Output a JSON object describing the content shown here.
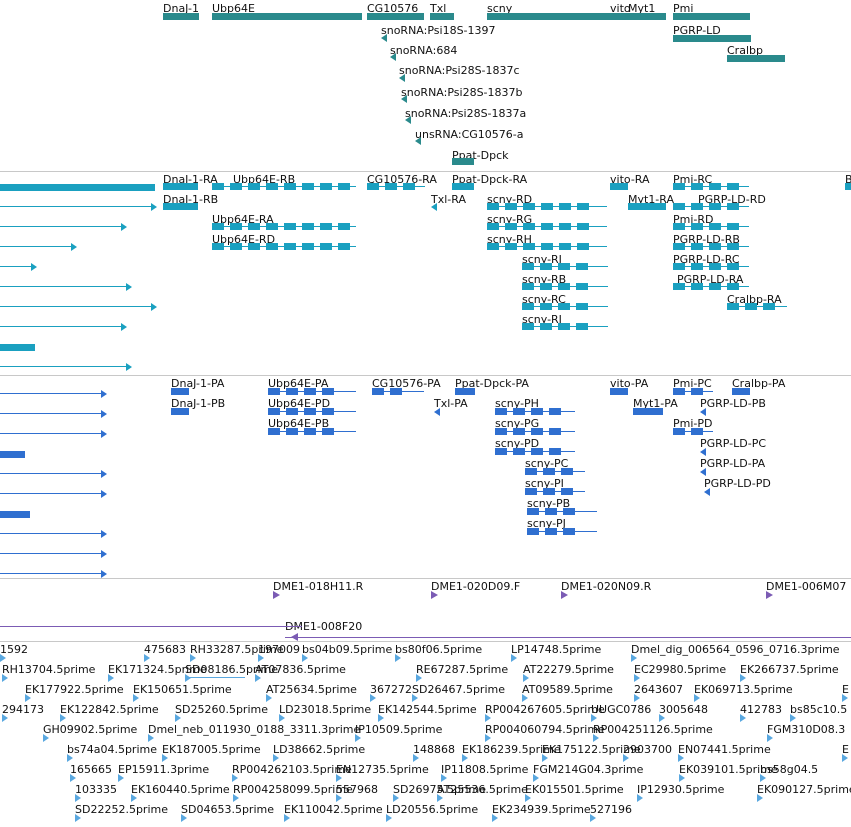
{
  "colors": {
    "gene": "#2a8a8c",
    "transcript": "#1aa0c0",
    "protein": "#2f6fd0",
    "clone": "#7b5bb4",
    "est": "#5aa8e0",
    "separator": "#c8c8c8"
  },
  "tracks": [
    {
      "name": "gene-track",
      "color_key": "gene",
      "features": [
        {
          "label": "DnaJ-1"
        },
        {
          "label": "Ubp64E"
        },
        {
          "label": "CG10576"
        },
        {
          "label": "Txl"
        },
        {
          "label": "scny"
        },
        {
          "label": "vito"
        },
        {
          "label": "Myt1"
        },
        {
          "label": "Pmi"
        },
        {
          "label": "PGRP-LD"
        },
        {
          "label": "Cralbp"
        },
        {
          "label": "snoRNA:Psi18S-1397"
        },
        {
          "label": "snoRNA:684"
        },
        {
          "label": "snoRNA:Psi28S-1837c"
        },
        {
          "label": "snoRNA:Psi28S-1837b"
        },
        {
          "label": "snoRNA:Psi28S-1837a"
        },
        {
          "label": "unsRNA:CG10576-a"
        },
        {
          "label": "Ppat-Dpck"
        }
      ]
    },
    {
      "name": "transcript-track",
      "color_key": "transcript",
      "features": [
        {
          "label": "DnaJ-1-RA"
        },
        {
          "label": "DnaJ-1-RB"
        },
        {
          "label": "Ubp64E-RB"
        },
        {
          "label": "Ubp64E-RA"
        },
        {
          "label": "Ubp64E-RD"
        },
        {
          "label": "CG10576-RA"
        },
        {
          "label": "Ppat-Dpck-RA"
        },
        {
          "label": "Txl-RA"
        },
        {
          "label": "scny-RD"
        },
        {
          "label": "scny-RG"
        },
        {
          "label": "scny-RH"
        },
        {
          "label": "scny-RJ"
        },
        {
          "label": "scny-RB"
        },
        {
          "label": "scny-RC"
        },
        {
          "label": "scny-RI"
        },
        {
          "label": "vito-RA"
        },
        {
          "label": "Myt1-RA"
        },
        {
          "label": "Pmi-RC"
        },
        {
          "label": "PGRP-LD-RD"
        },
        {
          "label": "Pmi-RD"
        },
        {
          "label": "PGRP-LD-RB"
        },
        {
          "label": "PGRP-LD-RC"
        },
        {
          "label": "PGRP-LD-RA"
        },
        {
          "label": "Cralbp-RA"
        },
        {
          "label": "B"
        }
      ]
    },
    {
      "name": "protein-track",
      "color_key": "protein",
      "features": [
        {
          "label": "DnaJ-1-PA"
        },
        {
          "label": "DnaJ-1-PB"
        },
        {
          "label": "Ubp64E-PA"
        },
        {
          "label": "Ubp64E-PD"
        },
        {
          "label": "Ubp64E-PB"
        },
        {
          "label": "CG10576-PA"
        },
        {
          "label": "Ppat-Dpck-PA"
        },
        {
          "label": "Txl-PA"
        },
        {
          "label": "scny-PH"
        },
        {
          "label": "scny-PG"
        },
        {
          "label": "scny-PD"
        },
        {
          "label": "scny-PC"
        },
        {
          "label": "scny-PI"
        },
        {
          "label": "scny-PB"
        },
        {
          "label": "scny-PJ"
        },
        {
          "label": "vito-PA"
        },
        {
          "label": "Myt1-PA"
        },
        {
          "label": "Pmi-PC"
        },
        {
          "label": "Pmi-PD"
        },
        {
          "label": "Cralbp-PA"
        },
        {
          "label": "PGRP-LD-PB"
        },
        {
          "label": "PGRP-LD-PC"
        },
        {
          "label": "PGRP-LD-PA"
        },
        {
          "label": "PGRP-LD-PD"
        }
      ]
    },
    {
      "name": "clone-track",
      "color_key": "clone",
      "features": [
        {
          "label": "DME1-018H11.R"
        },
        {
          "label": "DME1-020D09.F"
        },
        {
          "label": "DME1-020N09.R"
        },
        {
          "label": "DME1-006M07"
        },
        {
          "label": "DME1-008F20"
        }
      ]
    },
    {
      "name": "est-track",
      "color_key": "est",
      "features": [
        {
          "label": "1592"
        },
        {
          "label": "475683"
        },
        {
          "label": "RH33287.5prime"
        },
        {
          "label": "197009"
        },
        {
          "label": "bs04b09.5prime"
        },
        {
          "label": "bs80f06.5prime"
        },
        {
          "label": "LP14748.5prime"
        },
        {
          "label": "Dmel_dig_006564_0596_0716.3prime"
        },
        {
          "label": "RH13704.5prime"
        },
        {
          "label": "EK171324.5prime"
        },
        {
          "label": "SD08186.5prime"
        },
        {
          "label": "AT07836.5prime"
        },
        {
          "label": "RE67287.5prime"
        },
        {
          "label": "AT22279.5prime"
        },
        {
          "label": "EC29980.5prime"
        },
        {
          "label": "EK266737.5prime"
        },
        {
          "label": "EK177922.5prime"
        },
        {
          "label": "EK150651.5prime"
        },
        {
          "label": "AT25634.5prime"
        },
        {
          "label": "367272"
        },
        {
          "label": "SD26467.5prime"
        },
        {
          "label": "AT09589.5prime"
        },
        {
          "label": "2643607"
        },
        {
          "label": "EK069713.5prime"
        },
        {
          "label": "E"
        },
        {
          "label": "294173"
        },
        {
          "label": "EK122842.5prime"
        },
        {
          "label": "SD25260.5prime"
        },
        {
          "label": "LD23018.5prime"
        },
        {
          "label": "EK142544.5prime"
        },
        {
          "label": "RP004267605.5prime"
        },
        {
          "label": "UUGC0786"
        },
        {
          "label": "3005648"
        },
        {
          "label": "412783"
        },
        {
          "label": "bs85c10.5"
        },
        {
          "label": "GH09902.5prime"
        },
        {
          "label": "Dmel_neb_011930_0188_3311.3prime"
        },
        {
          "label": "IP10509.5prime"
        },
        {
          "label": "RP004060794.5prime"
        },
        {
          "label": "RP004251126.5prime"
        },
        {
          "label": "FGM310D08.3"
        },
        {
          "label": "bs74a04.5prime"
        },
        {
          "label": "EK187005.5prime"
        },
        {
          "label": "LD38662.5prime"
        },
        {
          "label": "148868"
        },
        {
          "label": "EK186239.5prime"
        },
        {
          "label": "EK175122.5prime"
        },
        {
          "label": "2903700"
        },
        {
          "label": "EN07441.5prime"
        },
        {
          "label": "E"
        },
        {
          "label": "165665"
        },
        {
          "label": "EP15911.3prime"
        },
        {
          "label": "RP004262103.5prime"
        },
        {
          "label": "EN12735.5prime"
        },
        {
          "label": "IP11808.5prime"
        },
        {
          "label": "FGM214G04.3prime"
        },
        {
          "label": "EK039101.5prime"
        },
        {
          "label": "bs58g04.5"
        },
        {
          "label": "103335"
        },
        {
          "label": "EK160440.5prime"
        },
        {
          "label": "RP004258099.5prime"
        },
        {
          "label": "557968"
        },
        {
          "label": "SD26975.5prime"
        },
        {
          "label": "AT25536.5prime"
        },
        {
          "label": "EK015501.5prime"
        },
        {
          "label": "IP12930.5prime"
        },
        {
          "label": "EK090127.5prime"
        },
        {
          "label": "SD22252.5prime"
        },
        {
          "label": "SD04653.5prime"
        },
        {
          "label": "EK110042.5prime"
        },
        {
          "label": "LD20556.5prime"
        },
        {
          "label": "EK234939.5prime"
        },
        {
          "label": "527196"
        }
      ]
    }
  ]
}
